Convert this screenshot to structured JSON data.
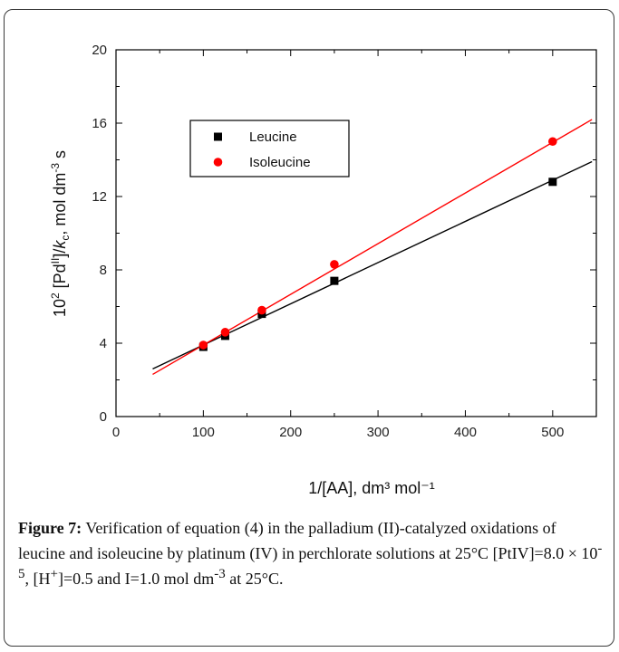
{
  "chart_data": {
    "type": "scatter",
    "xlabel": "1/[AA], dm³ mol⁻¹",
    "ylabel_parts": [
      "10",
      "2",
      " [Pd",
      "II",
      "]/",
      "k",
      "c",
      ", mol dm",
      "-3",
      " s"
    ],
    "xlim": [
      0,
      550
    ],
    "ylim": [
      0,
      20
    ],
    "x_ticks": [
      "0",
      "100",
      "200",
      "300",
      "400",
      "500"
    ],
    "y_ticks": [
      "0",
      "4",
      "8",
      "12",
      "16",
      "20"
    ],
    "grid": false,
    "legend_position": "upper-left",
    "series": [
      {
        "name": "Leucine",
        "color": "#000000",
        "marker": "square",
        "points": [
          [
            100,
            3.8
          ],
          [
            125,
            4.4
          ],
          [
            167,
            5.6
          ],
          [
            250,
            7.4
          ],
          [
            500,
            12.8
          ]
        ],
        "fit_line": [
          [
            42,
            2.6
          ],
          [
            545,
            13.9
          ]
        ]
      },
      {
        "name": "Isoleucine",
        "color": "#ff0000",
        "marker": "circle",
        "points": [
          [
            100,
            3.9
          ],
          [
            125,
            4.6
          ],
          [
            167,
            5.8
          ],
          [
            250,
            8.3
          ],
          [
            500,
            15.0
          ]
        ],
        "fit_line": [
          [
            42,
            2.3
          ],
          [
            545,
            16.2
          ]
        ]
      }
    ]
  },
  "caption": {
    "label": "Figure 7:",
    "text": " Verification of equation (4) in the palladium (II)-catalyzed oxidations of leucine and isoleucine by platinum (IV) in perchlorate solutions at 25°C [PtIV]=8.0 × 10",
    "exp1": "-5",
    "text2": ", [H",
    "sup2": "+",
    "text3": "]=0.5 and I=1.0 mol dm",
    "exp3": "-3",
    "text4": " at 25°C."
  }
}
